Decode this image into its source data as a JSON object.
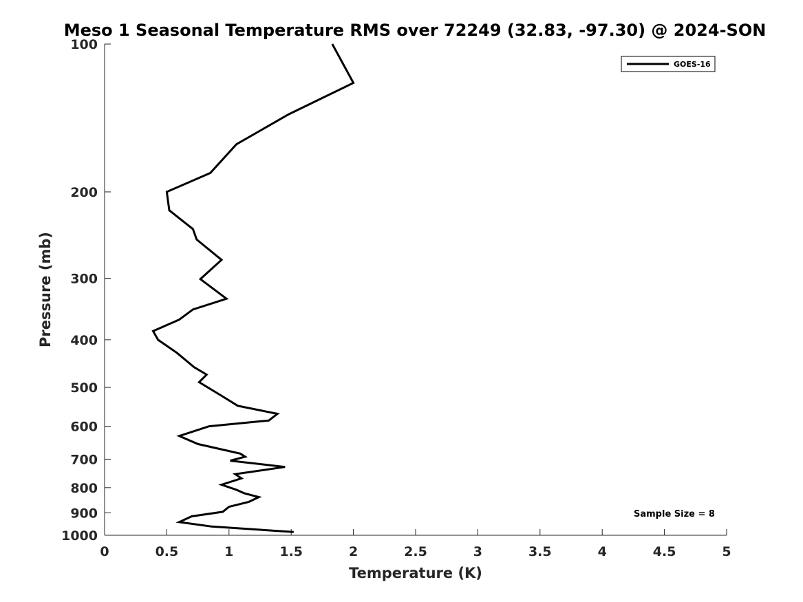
{
  "chart_data": {
    "type": "line",
    "title": "Meso 1 Seasonal Temperature RMS over 72249 (32.83, -97.30) @ 2024-SON",
    "xlabel": "Temperature (K)",
    "ylabel": "Pressure (mb)",
    "xlim": [
      0,
      5
    ],
    "ylim": [
      100,
      1000
    ],
    "y_scale": "log",
    "y_reversed": true,
    "x_ticks": [
      0,
      0.5,
      1,
      1.5,
      2,
      2.5,
      3,
      3.5,
      4,
      4.5,
      5
    ],
    "x_tick_labels": [
      "0",
      "0.5",
      "1",
      "1.5",
      "2",
      "2.5",
      "3",
      "3.5",
      "4",
      "4.5",
      "5"
    ],
    "y_ticks": [
      100,
      200,
      300,
      400,
      500,
      600,
      700,
      800,
      900,
      1000
    ],
    "y_tick_labels": [
      "100",
      "200",
      "300",
      "400",
      "500",
      "600",
      "700",
      "800",
      "900",
      "1000"
    ],
    "grid": false,
    "legend_position": "top-right",
    "annotation": "Sample Size = 8",
    "series": [
      {
        "name": "GOES-16",
        "color": "#000000",
        "points": [
          [
            1.83,
            100
          ],
          [
            2.0,
            120
          ],
          [
            1.48,
            139
          ],
          [
            1.06,
            160
          ],
          [
            0.85,
            183
          ],
          [
            0.5,
            200
          ],
          [
            0.52,
            218
          ],
          [
            0.71,
            238
          ],
          [
            0.74,
            250
          ],
          [
            0.94,
            275
          ],
          [
            0.77,
            301
          ],
          [
            0.98,
            330
          ],
          [
            0.71,
            347
          ],
          [
            0.6,
            364
          ],
          [
            0.39,
            384
          ],
          [
            0.43,
            400
          ],
          [
            0.58,
            425
          ],
          [
            0.72,
            455
          ],
          [
            0.82,
            471
          ],
          [
            0.76,
            488
          ],
          [
            0.95,
            522
          ],
          [
            1.07,
            545
          ],
          [
            1.39,
            566
          ],
          [
            1.32,
            584
          ],
          [
            0.84,
            600
          ],
          [
            0.6,
            628
          ],
          [
            0.75,
            652
          ],
          [
            1.09,
            682
          ],
          [
            1.13,
            692
          ],
          [
            1.01,
            705
          ],
          [
            1.45,
            726
          ],
          [
            1.05,
            751
          ],
          [
            1.1,
            766
          ],
          [
            0.94,
            789
          ],
          [
            1.06,
            808
          ],
          [
            1.12,
            821
          ],
          [
            1.24,
            836
          ],
          [
            1.16,
            855
          ],
          [
            1.0,
            875
          ],
          [
            0.95,
            896
          ],
          [
            0.7,
            915
          ],
          [
            0.6,
            940
          ],
          [
            0.86,
            960
          ],
          [
            1.52,
            985
          ]
        ]
      }
    ]
  }
}
